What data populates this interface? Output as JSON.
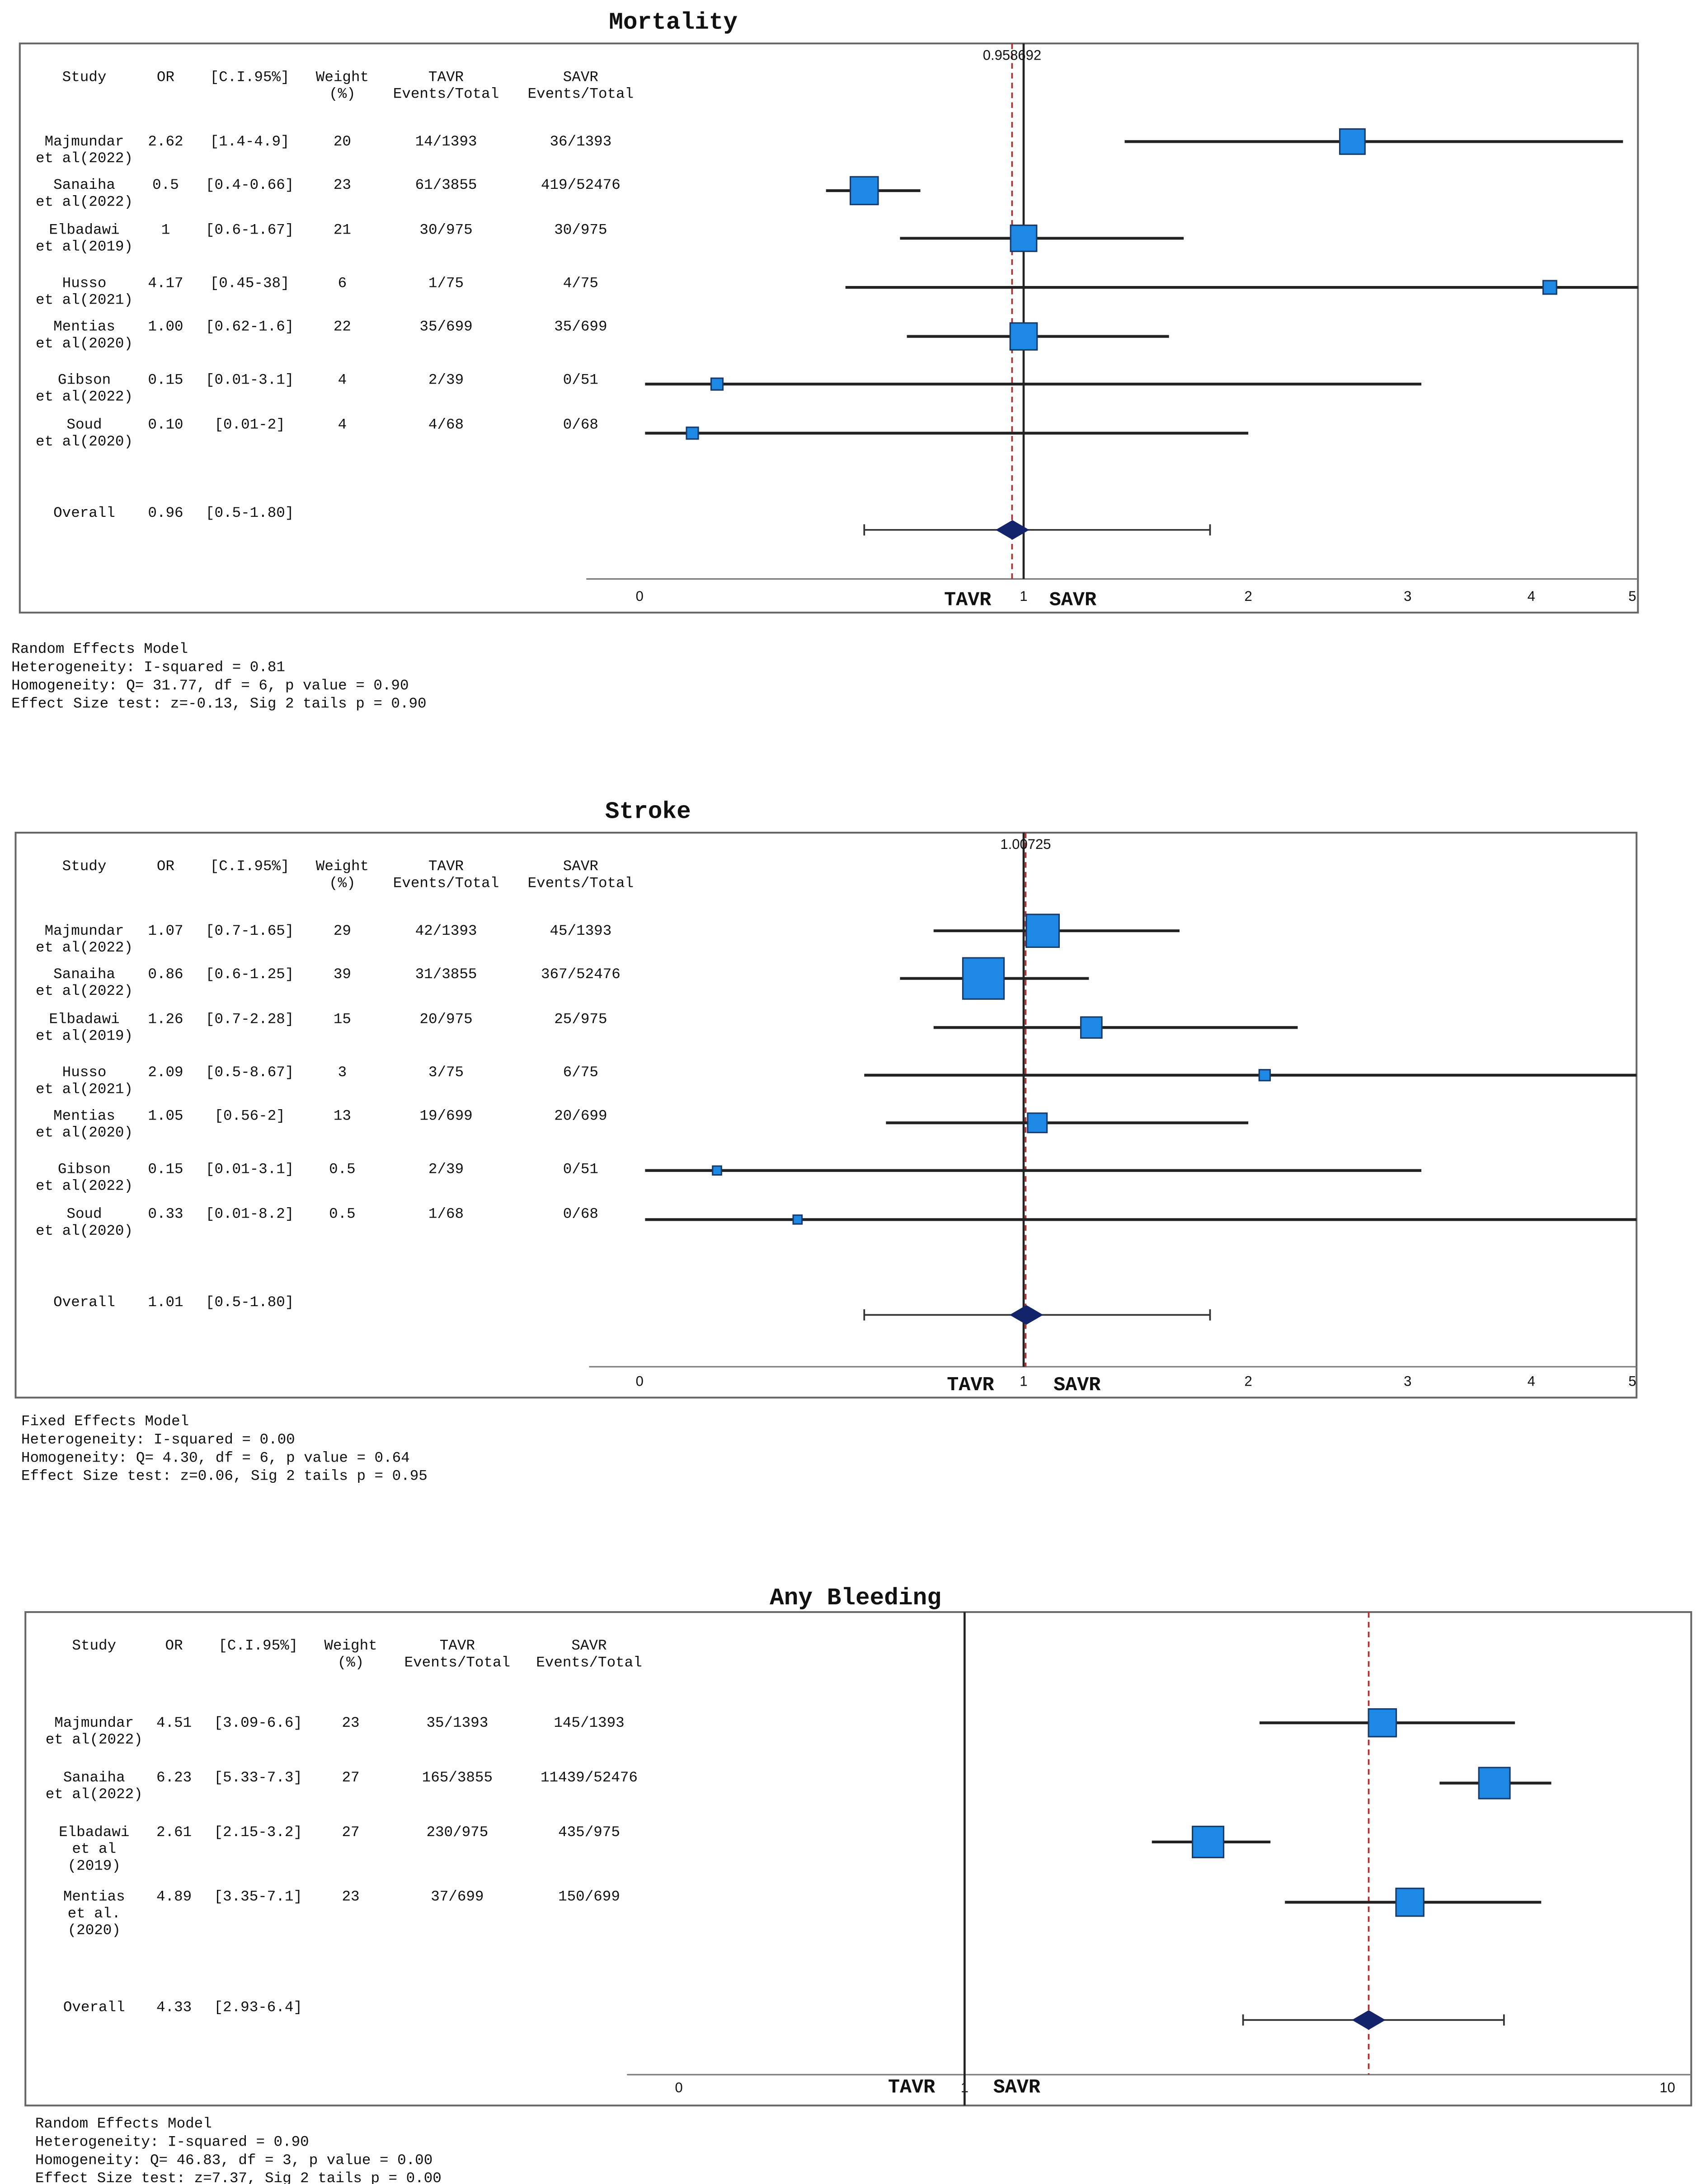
{
  "chart_data": [
    {
      "type": "forest",
      "title": "Mortality",
      "columns": [
        [
          "Study"
        ],
        [
          "OR"
        ],
        [
          "[C.I.95%]"
        ],
        [
          "Weight",
          "(%)"
        ],
        [
          "TAVR",
          "Events/Total"
        ],
        [
          "SAVR",
          "Events/Total"
        ]
      ],
      "studies": [
        [
          "Majmundar",
          "et al(2022)"
        ],
        [
          "Sanaiha",
          "et al(2022)"
        ],
        [
          "Elbadawi",
          "et al(2019)"
        ],
        [
          "Husso",
          "et al(2021)"
        ],
        [
          "Mentias",
          "et al(2020)"
        ],
        [
          "Gibson",
          "et al(2022)"
        ],
        [
          "Soud",
          "et al(2020)"
        ]
      ],
      "values": [
        2.62,
        0.5,
        1,
        4.17,
        1.0,
        0.15,
        0.1
      ],
      "value_labels": [
        "2.62",
        "0.5",
        "1",
        "4.17",
        "1.00",
        "0.15",
        "0.10"
      ],
      "ci": [
        [
          1.4,
          4.9
        ],
        [
          0.4,
          0.66
        ],
        [
          0.6,
          1.67
        ],
        [
          0.45,
          38
        ],
        [
          0.62,
          1.6
        ],
        [
          0.01,
          3.1
        ],
        [
          0.01,
          2
        ]
      ],
      "ci_labels": [
        "[1.4-4.9]",
        "[0.4-0.66]",
        "[0.6-1.67]",
        "[0.45-38]",
        "[0.62-1.6]",
        "[0.01-3.1]",
        "[0.01-2]"
      ],
      "weights": [
        20,
        23,
        21,
        6,
        22,
        4,
        4
      ],
      "tavr": [
        "14/1393",
        "61/3855",
        "30/975",
        "1/75",
        "35/699",
        "2/39",
        "4/68"
      ],
      "savr": [
        "36/1393",
        "419/52476",
        "30/975",
        "4/75",
        "35/699",
        "0/51",
        "0/68"
      ],
      "overall": {
        "label": "Overall",
        "value": 0.96,
        "value_label": "0.96",
        "ci": [
          0.5,
          1.8
        ],
        "ci_label": "[0.5-1.80]"
      },
      "xscale": "log1p",
      "xlim": [
        0,
        5
      ],
      "xticks": [
        0,
        1,
        2,
        3,
        4,
        5
      ],
      "null_line": 1,
      "reference_line": 0.958692,
      "reference_label_shown": true,
      "left_label": "TAVR",
      "right_label": "SAVR",
      "stats": [
        "Random Effects Model",
        "Heterogeneity: I-squared = 0.81",
        "Homogeneity: Q= 31.77, df = 6, p value = 0.90",
        "Effect Size test: z=-0.13, Sig 2 tails p = 0.90"
      ],
      "marker_color": "#1e88e5",
      "diamond_color": "#14246b",
      "reference_color": "#b03030"
    },
    {
      "type": "forest",
      "title": "Stroke",
      "columns": [
        [
          "Study"
        ],
        [
          "OR"
        ],
        [
          "[C.I.95%]"
        ],
        [
          "Weight",
          "(%)"
        ],
        [
          "TAVR",
          "Events/Total"
        ],
        [
          "SAVR",
          "Events/Total"
        ]
      ],
      "studies": [
        [
          "Majmundar",
          "et al(2022)"
        ],
        [
          "Sanaiha",
          "et al(2022)"
        ],
        [
          "Elbadawi",
          "et al(2019)"
        ],
        [
          "Husso",
          "et al(2021)"
        ],
        [
          "Mentias",
          "et al(2020)"
        ],
        [
          "Gibson",
          "et al(2022)"
        ],
        [
          "Soud",
          "et al(2020)"
        ]
      ],
      "values": [
        1.07,
        0.86,
        1.26,
        2.09,
        1.05,
        0.15,
        0.33
      ],
      "value_labels": [
        "1.07",
        "0.86",
        "1.26",
        "2.09",
        "1.05",
        "0.15",
        "0.33"
      ],
      "ci": [
        [
          0.7,
          1.65
        ],
        [
          0.6,
          1.25
        ],
        [
          0.7,
          2.28
        ],
        [
          0.5,
          8.67
        ],
        [
          0.56,
          2
        ],
        [
          0.01,
          3.1
        ],
        [
          0.01,
          8.2
        ]
      ],
      "ci_labels": [
        "[0.7-1.65]",
        "[0.6-1.25]",
        "[0.7-2.28]",
        "[0.5-8.67]",
        "[0.56-2]",
        "[0.01-3.1]",
        "[0.01-8.2]"
      ],
      "weights": [
        29,
        39,
        15,
        3,
        13,
        0.5,
        0.5
      ],
      "tavr": [
        "42/1393",
        "31/3855",
        "20/975",
        "3/75",
        "19/699",
        "2/39",
        "1/68"
      ],
      "savr": [
        "45/1393",
        "367/52476",
        "25/975",
        "6/75",
        "20/699",
        "0/51",
        "0/68"
      ],
      "overall": {
        "label": "Overall",
        "value": 1.01,
        "value_label": "1.01",
        "ci": [
          0.5,
          1.8
        ],
        "ci_label": "[0.5-1.80]"
      },
      "xscale": "log1p",
      "xlim": [
        0,
        5
      ],
      "xticks": [
        0,
        1,
        2,
        3,
        4,
        5
      ],
      "null_line": 1,
      "reference_line": 1.00725,
      "reference_label_shown": true,
      "left_label": "TAVR",
      "right_label": "SAVR",
      "stats": [
        "Fixed Effects Model",
        "Heterogeneity: I-squared = 0.00",
        "Homogeneity: Q= 4.30, df = 6, p value = 0.64",
        "Effect Size test: z=0.06, Sig 2 tails p = 0.95"
      ],
      "marker_color": "#1e88e5",
      "diamond_color": "#14246b",
      "reference_color": "#b03030"
    },
    {
      "type": "forest",
      "title": "Any Bleeding",
      "columns": [
        [
          "Study"
        ],
        [
          "OR"
        ],
        [
          "[C.I.95%]"
        ],
        [
          "Weight",
          "(%)"
        ],
        [
          "TAVR",
          "Events/Total"
        ],
        [
          "SAVR",
          "Events/Total"
        ]
      ],
      "studies": [
        [
          "Majmundar",
          "et al(2022)"
        ],
        [
          "Sanaiha",
          "et al(2022)"
        ],
        [
          "Elbadawi",
          "et al",
          "(2019)"
        ],
        [
          "Mentias",
          "et al.",
          "(2020)"
        ]
      ],
      "values": [
        4.51,
        6.23,
        2.61,
        4.89
      ],
      "value_labels": [
        "4.51",
        "6.23",
        "2.61",
        "4.89"
      ],
      "ci": [
        [
          3.09,
          6.6
        ],
        [
          5.33,
          7.3
        ],
        [
          2.15,
          3.2
        ],
        [
          3.35,
          7.1
        ]
      ],
      "ci_labels": [
        "[3.09-6.6]",
        "[5.33-7.3]",
        "[2.15-3.2]",
        "[3.35-7.1]"
      ],
      "weights": [
        23,
        27,
        27,
        23
      ],
      "tavr": [
        "35/1393",
        "165/3855",
        "230/975",
        "37/699"
      ],
      "savr": [
        "145/1393",
        "11439/52476",
        "435/975",
        "150/699"
      ],
      "overall": {
        "label": "Overall",
        "value": 4.33,
        "value_label": "4.33",
        "ci": [
          2.93,
          6.4
        ],
        "ci_label": "[2.93-6.4]"
      },
      "xscale": "log1p",
      "xlim": [
        0,
        10
      ],
      "xticks": [
        0,
        1,
        10
      ],
      "null_line": 1,
      "reference_line": 4.33,
      "reference_label_shown": false,
      "left_label": "TAVR",
      "right_label": "SAVR",
      "stats": [
        "Random Effects Model",
        "Heterogeneity: I-squared = 0.90",
        "Homogeneity: Q= 46.83, df = 3, p value = 0.00",
        "Effect Size test: z=7.37, Sig 2 tails p = 0.00"
      ],
      "marker_color": "#1e88e5",
      "diamond_color": "#14246b",
      "reference_color": "#b03030"
    }
  ]
}
